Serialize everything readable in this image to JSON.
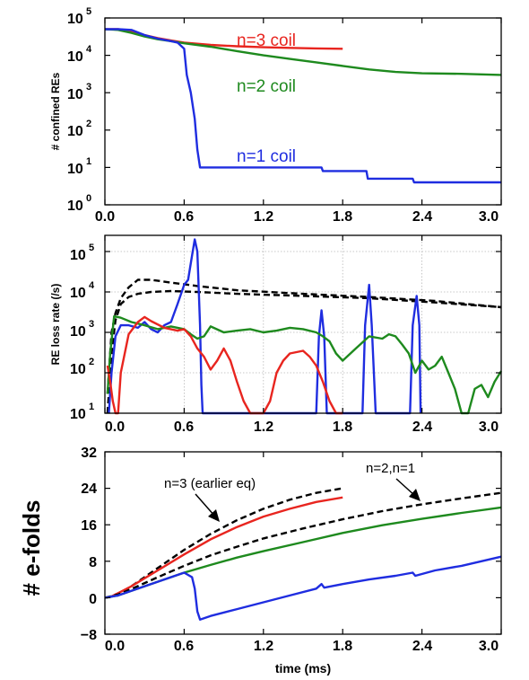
{
  "chart_data": [
    {
      "type": "line",
      "ylabel": "# confined REs",
      "yscale": "log",
      "xlim": [
        0,
        3.0
      ],
      "ylim_exp": [
        0,
        5
      ],
      "x_ticks": [
        "0.0",
        "0.6",
        "1.2",
        "1.8",
        "2.4",
        "3.0"
      ],
      "y_tick_labels": [
        "10",
        "10",
        "10",
        "10",
        "10",
        "10"
      ],
      "y_tick_exps": [
        "0",
        "1",
        "2",
        "3",
        "4",
        "5"
      ],
      "grid": false,
      "annotations": [
        "n=3 coil",
        "n=2 coil",
        "n=1 coil"
      ],
      "series": [
        {
          "name": "n=3 coil",
          "color": "#e8251f",
          "x": [
            0,
            0.1,
            0.2,
            0.3,
            0.4,
            0.5,
            0.6,
            0.8,
            1.0,
            1.2,
            1.4,
            1.6,
            1.8
          ],
          "y": [
            50000,
            50000,
            45000,
            35000,
            29000,
            25000,
            22000,
            19000,
            17500,
            16500,
            15800,
            15300,
            15000
          ]
        },
        {
          "name": "n=2 coil",
          "color": "#1e8a1e",
          "x": [
            0,
            0.1,
            0.2,
            0.3,
            0.4,
            0.5,
            0.6,
            0.8,
            1.0,
            1.2,
            1.4,
            1.6,
            1.8,
            2.0,
            2.2,
            2.4,
            2.7,
            3.0
          ],
          "y": [
            50000,
            48000,
            40000,
            32000,
            27000,
            24000,
            21000,
            17000,
            13000,
            10000,
            8000,
            6500,
            5200,
            4200,
            3600,
            3300,
            3200,
            3000
          ]
        },
        {
          "name": "n=1 coil",
          "color": "#1f2de0",
          "x": [
            0,
            0.1,
            0.2,
            0.3,
            0.4,
            0.5,
            0.55,
            0.6,
            0.62,
            0.65,
            0.68,
            0.7,
            0.72,
            1.0,
            1.4,
            1.64,
            1.65,
            1.98,
            1.99,
            2.33,
            2.34,
            2.7,
            3.0
          ],
          "y": [
            50000,
            50000,
            48000,
            35000,
            28000,
            24000,
            22000,
            15000,
            3000,
            1000,
            200,
            30,
            10,
            10,
            10,
            10,
            8,
            8,
            5,
            5,
            4,
            4,
            4
          ]
        }
      ]
    },
    {
      "type": "line",
      "ylabel": "RE loss rate (/s)",
      "yscale": "log",
      "xlim": [
        0,
        3.0
      ],
      "ylim_exp": [
        1,
        5.4
      ],
      "x_ticks": [
        "0.0",
        "0.6",
        "1.2",
        "1.8",
        "2.4",
        "3.0"
      ],
      "y_tick_labels": [
        "10",
        "10",
        "10",
        "10",
        "10"
      ],
      "y_tick_exps": [
        "1",
        "2",
        "3",
        "4",
        "5"
      ],
      "grid": true,
      "series": [
        {
          "color": "#000000",
          "style": "dashed",
          "x": [
            0.02,
            0.05,
            0.08,
            0.12,
            0.18,
            0.25,
            0.35,
            0.5,
            0.7,
            1.0,
            1.5,
            2.0,
            2.5,
            3.0
          ],
          "y": [
            30,
            1000,
            3000,
            7000,
            13000,
            20000,
            20000,
            17000,
            14000,
            11000,
            9000,
            7500,
            6000,
            4200
          ]
        },
        {
          "color": "#000000",
          "style": "dashed",
          "x": [
            0.02,
            0.05,
            0.08,
            0.12,
            0.18,
            0.25,
            0.35,
            0.5,
            0.7,
            1.0,
            1.5,
            2.0,
            2.5,
            3.0
          ],
          "y": [
            10,
            300,
            2000,
            5000,
            7500,
            9000,
            10000,
            10500,
            10000,
            9000,
            8000,
            7000,
            5500,
            4200
          ]
        },
        {
          "color": "#1f2de0",
          "x": [
            0.03,
            0.05,
            0.08,
            0.12,
            0.18,
            0.25,
            0.3,
            0.35,
            0.4,
            0.45,
            0.5,
            0.55,
            0.6,
            0.63,
            0.66,
            0.68,
            0.7,
            0.72,
            0.73,
            0.74,
            1.6,
            1.62,
            1.64,
            1.66,
            1.68,
            1.7,
            1.95,
            1.97,
            2.0,
            2.02,
            2.04,
            2.05,
            2.31,
            2.33,
            2.36,
            2.38,
            2.39
          ],
          "y": [
            10,
            100,
            800,
            1500,
            1500,
            1300,
            1800,
            1200,
            1000,
            1500,
            1800,
            5000,
            15000,
            20000,
            80000,
            200000,
            100000,
            1500,
            50,
            10,
            10,
            800,
            3500,
            800,
            10,
            10,
            10,
            1500,
            15000,
            1500,
            50,
            10,
            10,
            1500,
            8000,
            1500,
            10
          ]
        },
        {
          "color": "#1e8a1e",
          "x": [
            0.02,
            0.04,
            0.07,
            0.12,
            0.2,
            0.3,
            0.4,
            0.5,
            0.6,
            0.65,
            0.7,
            0.75,
            0.8,
            0.9,
            1.0,
            1.1,
            1.2,
            1.3,
            1.4,
            1.5,
            1.6,
            1.65,
            1.7,
            1.75,
            1.8,
            1.9,
            2.0,
            2.1,
            2.15,
            2.2,
            2.25,
            2.3,
            2.35,
            2.4,
            2.45,
            2.5,
            2.55,
            2.6,
            2.65,
            2.7,
            2.75,
            2.8,
            2.85,
            2.9,
            2.95,
            3.0
          ],
          "y": [
            30,
            300,
            2500,
            2300,
            1800,
            1500,
            1200,
            1400,
            1200,
            900,
            700,
            800,
            1400,
            1000,
            1100,
            1200,
            1000,
            1100,
            1300,
            1200,
            1000,
            800,
            600,
            300,
            200,
            400,
            800,
            700,
            900,
            800,
            500,
            300,
            100,
            200,
            120,
            150,
            250,
            100,
            40,
            10,
            10,
            40,
            50,
            25,
            60,
            110
          ]
        },
        {
          "color": "#e8251f",
          "x": [
            0.02,
            0.04,
            0.06,
            0.08,
            0.1,
            0.12,
            0.18,
            0.25,
            0.3,
            0.35,
            0.45,
            0.55,
            0.6,
            0.65,
            0.7,
            0.75,
            0.8,
            0.85,
            0.9,
            0.95,
            1.0,
            1.05,
            1.1,
            1.15,
            1.2,
            1.25,
            1.3,
            1.35,
            1.4,
            1.5,
            1.55,
            1.6,
            1.65,
            1.7,
            1.75,
            1.8
          ],
          "y": [
            150,
            60,
            20,
            10,
            10,
            100,
            900,
            1800,
            2400,
            1900,
            1300,
            1100,
            1200,
            800,
            400,
            250,
            120,
            200,
            400,
            200,
            60,
            20,
            10,
            10,
            10,
            20,
            100,
            200,
            300,
            350,
            250,
            150,
            60,
            20,
            10,
            10
          ]
        }
      ]
    },
    {
      "type": "line",
      "ylabel": "# e-folds",
      "xlabel": "time (ms)",
      "xlim": [
        0,
        3.0
      ],
      "ylim": [
        -8,
        32
      ],
      "x_ticks": [
        "0.0",
        "0.6",
        "1.2",
        "1.8",
        "2.4",
        "3.0"
      ],
      "y_ticks": [
        "32",
        "24",
        "16",
        "8",
        "0",
        "−8"
      ],
      "grid": false,
      "annotations": [
        "n=3 (earlier eq)",
        "n=2,n=1"
      ],
      "series": [
        {
          "color": "#000000",
          "style": "dashed",
          "x": [
            0,
            0.05,
            0.1,
            0.2,
            0.4,
            0.6,
            0.8,
            1.0,
            1.2,
            1.4,
            1.6,
            1.8
          ],
          "y": [
            0,
            0.2,
            0.8,
            2.5,
            6.5,
            10.5,
            14,
            17,
            19.5,
            21.5,
            23,
            24
          ]
        },
        {
          "color": "#e8251f",
          "x": [
            0,
            0.05,
            0.1,
            0.2,
            0.4,
            0.6,
            0.8,
            1.0,
            1.2,
            1.4,
            1.6,
            1.8
          ],
          "y": [
            0,
            0.3,
            1,
            2.5,
            6,
            9.5,
            12.8,
            15.5,
            17.8,
            19.5,
            21,
            22
          ]
        },
        {
          "color": "#000000",
          "style": "dashed",
          "x": [
            0,
            0.1,
            0.2,
            0.4,
            0.6,
            0.8,
            1.0,
            1.2,
            1.5,
            1.8,
            2.1,
            2.4,
            2.7,
            3.0
          ],
          "y": [
            0,
            0.7,
            1.9,
            4.5,
            7,
            9.3,
            11.2,
            13,
            15.2,
            17.2,
            19,
            20.5,
            21.8,
            23
          ]
        },
        {
          "color": "#1e8a1e",
          "x": [
            0,
            0.1,
            0.2,
            0.4,
            0.6,
            0.8,
            1.0,
            1.2,
            1.5,
            1.8,
            2.1,
            2.4,
            2.7,
            3.0
          ],
          "y": [
            0,
            0.5,
            1.5,
            3.5,
            5.5,
            7.2,
            8.8,
            10.2,
            12.2,
            14.2,
            15.9,
            17.3,
            18.6,
            19.8
          ]
        },
        {
          "color": "#1f2de0",
          "x": [
            0,
            0.1,
            0.2,
            0.4,
            0.6,
            0.66,
            0.68,
            0.7,
            0.72,
            0.8,
            1.0,
            1.2,
            1.4,
            1.6,
            1.64,
            1.66,
            1.8,
            2.0,
            2.2,
            2.33,
            2.35,
            2.5,
            2.7,
            3.0
          ],
          "y": [
            0,
            0.5,
            1.5,
            3.5,
            5.5,
            4.5,
            2,
            -3,
            -4.8,
            -4,
            -2.5,
            -1,
            0.5,
            2,
            3,
            2.2,
            3,
            4,
            4.8,
            5.5,
            4.8,
            6,
            7,
            9
          ]
        }
      ]
    }
  ]
}
